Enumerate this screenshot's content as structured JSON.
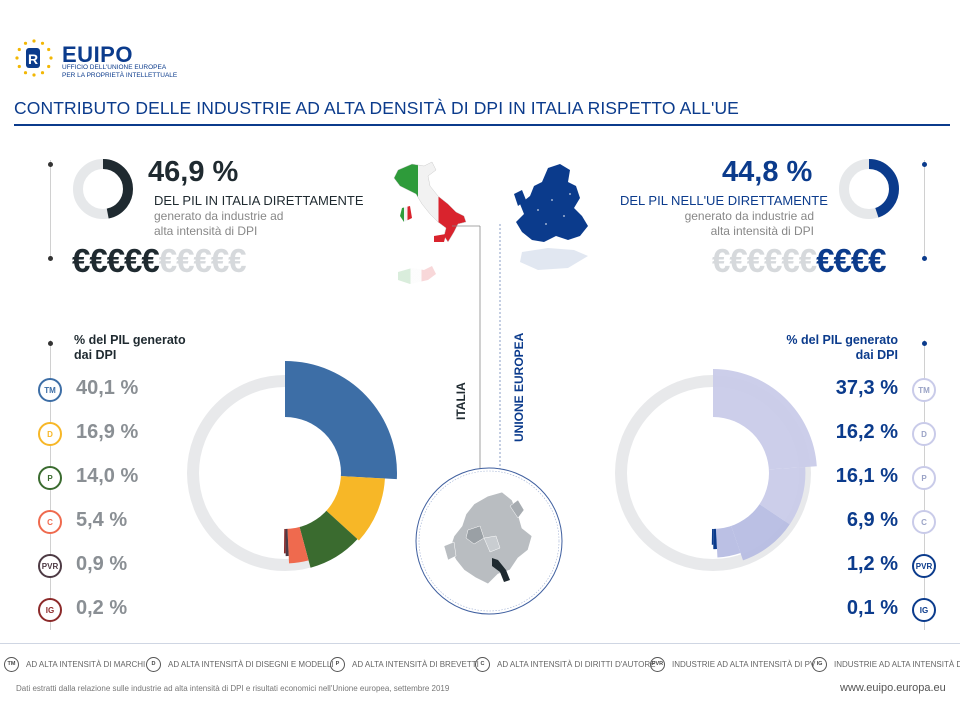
{
  "header": {
    "brand_eu": "EU",
    "brand_ipo": "IPO",
    "brand_sub_1": "UFFICIO DELL'UNIONE EUROPEA",
    "brand_sub_2": "PER LA PROPRIETÀ INTELLETTUALE",
    "title": "CONTRIBUTO DELLE INDUSTRIE AD ALTA DENSITÀ DI DPI IN ITALIA RISPETTO ALL'UE"
  },
  "italy": {
    "pct": "46,9 %",
    "lead": "DEL PIL IN ITALIA DIRETTAMENTE",
    "note": "generato da industrie ad alta intensità di DPI",
    "euros_dark": "€€€€€",
    "euros_light": "€€€€€",
    "share": 0.469,
    "color": "#1f2a30",
    "legend_head": "% del PIL generato dai DPI",
    "label": "ITALIA",
    "rows": [
      {
        "badge": "TM",
        "value": "40,1 %",
        "color": "#3d6ea6"
      },
      {
        "badge": "D",
        "value": "16,9 %",
        "color": "#f7b727"
      },
      {
        "badge": "P",
        "value": "14,0 %",
        "color": "#3a6b2f"
      },
      {
        "badge": "C",
        "value": "5,4 %",
        "color": "#ef6a4e"
      },
      {
        "badge": "PVR",
        "value": "0,9 %",
        "color": "#4d3a44"
      },
      {
        "badge": "IG",
        "value": "0,2 %",
        "color": "#8c2a2a"
      }
    ]
  },
  "eu": {
    "pct": "44,8 %",
    "lead": "DEL PIL NELL'UE DIRETTAMENTE",
    "note": "generato da industrie ad alta intensità di DPI",
    "euros_light": "€€€€€€",
    "euros_dark": "€€€€",
    "share": 0.448,
    "color": "#0b3b8c",
    "legend_head": "% del PIL generato dai DPI",
    "label": "UNIONE EUROPEA",
    "rows": [
      {
        "badge": "TM",
        "value": "37,3 %",
        "color": "#c9cbe9"
      },
      {
        "badge": "D",
        "value": "16,2 %",
        "color": "#c9cbe9"
      },
      {
        "badge": "P",
        "value": "16,1 %",
        "color": "#b7bde3"
      },
      {
        "badge": "C",
        "value": "6,9 %",
        "color": "#b7bde3"
      },
      {
        "badge": "PVR",
        "value": "1,2 %",
        "color": "#0b3b8c"
      },
      {
        "badge": "IG",
        "value": "0,1 %",
        "color": "#0b3b8c"
      }
    ]
  },
  "legend": [
    {
      "badge": "TM",
      "text": "AD ALTA INTENSITÀ DI MARCHI"
    },
    {
      "badge": "D",
      "text": "AD ALTA INTENSITÀ DI DISEGNI E MODELLI"
    },
    {
      "badge": "P",
      "text": "AD ALTA INTENSITÀ DI BREVETTI"
    },
    {
      "badge": "C",
      "text": "AD ALTA INTENSITÀ DI DIRITTI D'AUTORE"
    },
    {
      "badge": "PVR",
      "text": "INDUSTRIE AD ALTA INTENSITÀ DI PV"
    },
    {
      "badge": "IG",
      "text": "INDUSTRIE AD ALTA INTENSITÀ DI I"
    }
  ],
  "footer": {
    "source": "Dati estratti dalla relazione sulle industrie ad alta intensità di DPI e risultati economici nell'Unione europea, settembre 2019",
    "url": "www.euipo.europa.eu"
  }
}
